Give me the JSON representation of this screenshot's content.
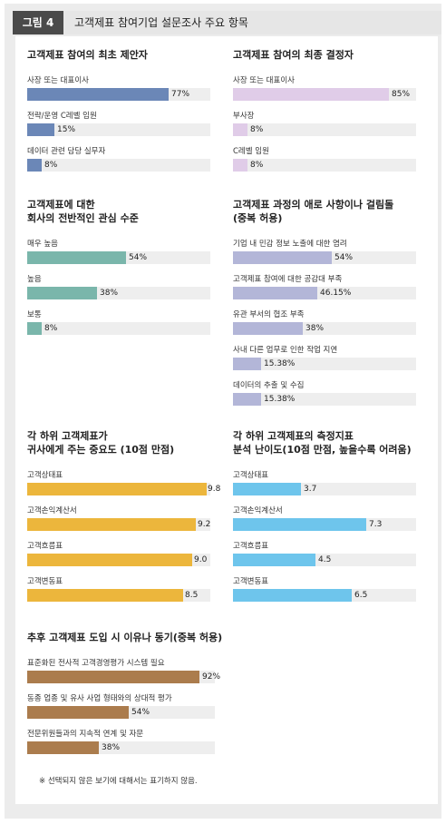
{
  "figure": {
    "label": "그림 4",
    "title": "고객제표 참여기업 설문조사 주요 항목"
  },
  "footnote": "※ 선택되지 않은 보기에 대해서는 표기하지 않음.",
  "chart_data": [
    {
      "type": "bar",
      "orientation": "horizontal",
      "title": [
        "고객제표 참여의 최초 제안자"
      ],
      "max": 100,
      "color": "#6b87b7",
      "categories": [
        "사장 또는 대표이사",
        "전략/운영 C레벨 임원",
        "데이터 관련 담당 실무자"
      ],
      "values": [
        77,
        15,
        8
      ],
      "labels": [
        "77%",
        "15%",
        "8%"
      ]
    },
    {
      "type": "bar",
      "orientation": "horizontal",
      "title": [
        "고객제표 참여의 최종 결정자"
      ],
      "max": 100,
      "color": "#e0cce8",
      "categories": [
        "사장 또는 대표이사",
        "부사장",
        "C레벨 임원"
      ],
      "values": [
        85,
        8,
        8
      ],
      "labels": [
        "85%",
        "8%",
        "8%"
      ]
    },
    {
      "type": "bar",
      "orientation": "horizontal",
      "title": [
        "고객제표에 대한",
        "회사의 전반적인 관심 수준"
      ],
      "max": 100,
      "color": "#7ab6ab",
      "categories": [
        "매우 높음",
        "높음",
        "보통"
      ],
      "values": [
        54,
        38,
        8
      ],
      "labels": [
        "54%",
        "38%",
        "8%"
      ]
    },
    {
      "type": "bar",
      "orientation": "horizontal",
      "title": [
        "고객제표 과정의 애로 사항이나 걸림돌",
        "(중복 허용)"
      ],
      "max": 100,
      "color": "#b3b6d8",
      "categories": [
        "기업 내 민감 정보 노출에 대한 염려",
        "고객제표 참여에 대한 공감대 부족",
        "유관 부서의 협조 부족",
        "사내 다른 업무로 인한 작업 지연",
        "데이터의 추출 및 수집"
      ],
      "values": [
        54,
        46.15,
        38,
        15.38,
        15.38
      ],
      "labels": [
        "54%",
        "46.15%",
        "38%",
        "15.38%",
        "15.38%"
      ]
    },
    {
      "type": "bar",
      "orientation": "horizontal",
      "title": [
        "각 하위 고객제표가",
        "귀사에게 주는 중요도 (10점 만점)"
      ],
      "max": 10,
      "color": "#ecb63c",
      "categories": [
        "고객상태표",
        "고객손익계산서",
        "고객흐름표",
        "고객변동표"
      ],
      "values": [
        9.8,
        9.2,
        9.0,
        8.5
      ],
      "labels": [
        "9.8",
        "9.2",
        "9.0",
        "8.5"
      ]
    },
    {
      "type": "bar",
      "orientation": "horizontal",
      "title": [
        "각 하위 고객제표의 측정지표",
        "분석 난이도(10점 만점, 높을수록 어려움)"
      ],
      "max": 10,
      "color": "#6ec5ec",
      "categories": [
        "고객상태표",
        "고객손익계산서",
        "고객흐름표",
        "고객변동표"
      ],
      "values": [
        3.7,
        7.3,
        4.5,
        6.5
      ],
      "labels": [
        "3.7",
        "7.3",
        "4.5",
        "6.5"
      ]
    },
    {
      "type": "bar",
      "orientation": "horizontal",
      "title": [
        "추후 고객제표 도입 시 이유나 동기(중복 허용)"
      ],
      "max": 100,
      "color": "#ab7c4d",
      "categories": [
        "표준화된 전사적 고객경영평가 시스템 필요",
        "동종 업종 및 유사 사업 형태와의 상대적 평가",
        "전문위원들과의 지속적 연계 및 자문"
      ],
      "values": [
        92,
        54,
        38
      ],
      "labels": [
        "92%",
        "54%",
        "38%"
      ]
    }
  ]
}
